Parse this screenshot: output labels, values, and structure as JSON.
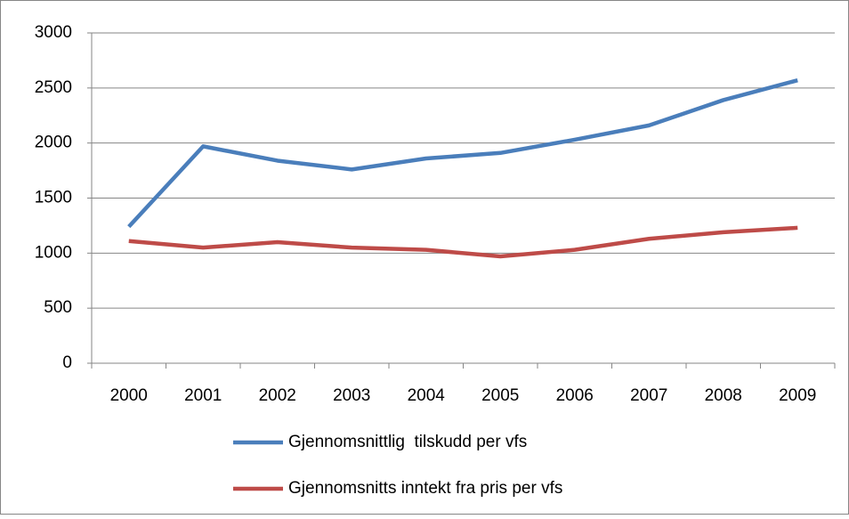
{
  "chart_data": {
    "type": "line",
    "categories": [
      "2000",
      "2001",
      "2002",
      "2003",
      "2004",
      "2005",
      "2006",
      "2007",
      "2008",
      "2009"
    ],
    "series": [
      {
        "name": "Gjennomsnittlig  tilskudd per vfs",
        "color": "#4a7ebb",
        "values": [
          1240,
          1970,
          1840,
          1760,
          1860,
          1910,
          2030,
          2160,
          2390,
          2570
        ]
      },
      {
        "name": "Gjennomsnitts inntekt fra pris per vfs",
        "color": "#be4b48",
        "values": [
          1110,
          1050,
          1100,
          1050,
          1030,
          970,
          1030,
          1130,
          1190,
          1230
        ]
      }
    ],
    "ylim": [
      0,
      3000
    ],
    "yticks": [
      0,
      500,
      1000,
      1500,
      2000,
      2500,
      3000
    ],
    "grid": true,
    "legend": "bottom"
  }
}
